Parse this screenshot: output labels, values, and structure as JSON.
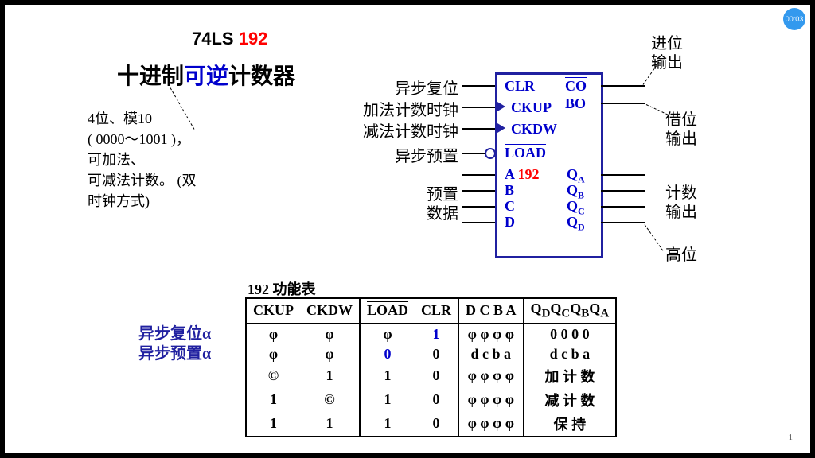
{
  "timer": "00:03",
  "title": {
    "part1": "74LS ",
    "part2": "192"
  },
  "subtitle": {
    "pre": "十进制",
    "mid": "可逆",
    "post": "计数器"
  },
  "desc": {
    "l1": "4位、模10",
    "l2": "( 0000～1001 )，",
    "l3": "可加法、",
    "l4": "可减法计数。    (双",
    "l5": "时钟方式)"
  },
  "cnLabels": {
    "clr": "异步复位",
    "ckup": "加法计数时钟",
    "ckdw": "减法计数时钟",
    "load": "异步预置",
    "preset1": "预置",
    "preset2": "数据",
    "co1": "进位",
    "co2": "输出",
    "bo1": "借位",
    "bo2": "输出",
    "q1": "计数",
    "q2": "输出",
    "hi": "高位"
  },
  "pins": {
    "clr": "CLR",
    "ckup": "CKUP",
    "ckdw": "CKDW",
    "load": "LOAD",
    "a": "A",
    "b": "B",
    "c": "C",
    "d": "D",
    "co": "CO",
    "bo": "BO",
    "qa": "Q",
    "qb": "Q",
    "qc": "Q",
    "qd": "Q",
    "sa": "A",
    "sb": "B",
    "sc": "C",
    "sd": "D",
    "num": "192"
  },
  "tableTitle": "192 功能表",
  "headers": {
    "h1": "CKUP",
    "h2": "CKDW",
    "h3": "LOAD",
    "h4": "CLR",
    "h5": "D C B A",
    "h6_pre": "Q",
    "h6a": "D",
    "h6b": "C",
    "h6c": "B",
    "h6d": "A"
  },
  "rows": [
    {
      "c1": "φ",
      "c2": "φ",
      "c3": "φ",
      "c4": "1",
      "c4color": "#0000cc",
      "c5": "φ  φ  φ  φ",
      "c6": "0   0   0   0"
    },
    {
      "c1": "φ",
      "c2": "φ",
      "c3": "0",
      "c3color": "#0000cc",
      "c4": "0",
      "c5": "d  c  b  a",
      "c6": "d   c   b   a"
    },
    {
      "c1": "©",
      "c2": "1",
      "c3": "1",
      "c4": "0",
      "c5": "φ  φ  φ  φ",
      "c6": "加 计 数",
      "c6cn": true
    },
    {
      "c1": "1",
      "c2": "©",
      "c3": "1",
      "c4": "0",
      "c5": "φ  φ  φ  φ",
      "c6": "减 计 数",
      "c6cn": true
    },
    {
      "c1": "1",
      "c2": "1",
      "c3": "1",
      "c4": "0",
      "c5": "φ  φ  φ  φ",
      "c6": "保 持",
      "c6cn": true
    }
  ],
  "sideLabels": {
    "l1": "异步复位α",
    "l2": "异步预置α"
  },
  "pagenum": "1"
}
